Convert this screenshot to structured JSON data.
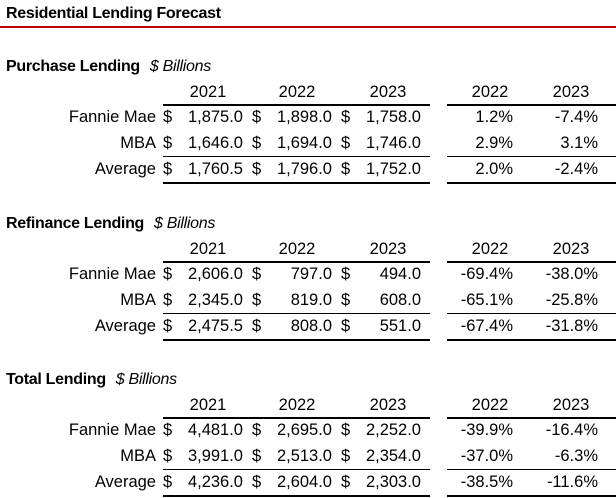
{
  "title": "Residential Lending Forecast",
  "accent_color": "#c00000",
  "sections": [
    {
      "title": "Purchase Lending",
      "unit": "$ Billions",
      "value_headers": [
        "2021",
        "2022",
        "2023"
      ],
      "pct_headers": [
        "2022",
        "2023"
      ],
      "rows": [
        {
          "label": "Fannie Mae",
          "values": [
            [
              "$",
              "1,875.0"
            ],
            [
              "$",
              "1,898.0"
            ],
            [
              "$",
              "1,758.0"
            ]
          ],
          "pct": [
            "1.2%",
            "-7.4%"
          ]
        },
        {
          "label": "MBA",
          "values": [
            [
              "$",
              "1,646.0"
            ],
            [
              "$",
              "1,694.0"
            ],
            [
              "$",
              "1,746.0"
            ]
          ],
          "pct": [
            "2.9%",
            "3.1%"
          ]
        },
        {
          "label": "Average",
          "values": [
            [
              "$",
              "1,760.5"
            ],
            [
              "$",
              "1,796.0"
            ],
            [
              "$",
              "1,752.0"
            ]
          ],
          "pct": [
            "2.0%",
            "-2.4%"
          ]
        }
      ]
    },
    {
      "title": "Refinance Lending",
      "unit": "$ Billions",
      "value_headers": [
        "2021",
        "2022",
        "2023"
      ],
      "pct_headers": [
        "2022",
        "2023"
      ],
      "rows": [
        {
          "label": "Fannie Mae",
          "values": [
            [
              "$",
              "2,606.0"
            ],
            [
              "$",
              "797.0"
            ],
            [
              "$",
              "494.0"
            ]
          ],
          "pct": [
            "-69.4%",
            "-38.0%"
          ]
        },
        {
          "label": "MBA",
          "values": [
            [
              "$",
              "2,345.0"
            ],
            [
              "$",
              "819.0"
            ],
            [
              "$",
              "608.0"
            ]
          ],
          "pct": [
            "-65.1%",
            "-25.8%"
          ]
        },
        {
          "label": "Average",
          "values": [
            [
              "$",
              "2,475.5"
            ],
            [
              "$",
              "808.0"
            ],
            [
              "$",
              "551.0"
            ]
          ],
          "pct": [
            "-67.4%",
            "-31.8%"
          ]
        }
      ]
    },
    {
      "title": "Total Lending",
      "unit": "$ Billions",
      "value_headers": [
        "2021",
        "2022",
        "2023"
      ],
      "pct_headers": [
        "2022",
        "2023"
      ],
      "rows": [
        {
          "label": "Fannie Mae",
          "values": [
            [
              "$",
              "4,481.0"
            ],
            [
              "$",
              "2,695.0"
            ],
            [
              "$",
              "2,252.0"
            ]
          ],
          "pct": [
            "-39.9%",
            "-16.4%"
          ]
        },
        {
          "label": "MBA",
          "values": [
            [
              "$",
              "3,991.0"
            ],
            [
              "$",
              "2,513.0"
            ],
            [
              "$",
              "2,354.0"
            ]
          ],
          "pct": [
            "-37.0%",
            "-6.3%"
          ]
        },
        {
          "label": "Average",
          "values": [
            [
              "$",
              "4,236.0"
            ],
            [
              "$",
              "2,604.0"
            ],
            [
              "$",
              "2,303.0"
            ]
          ],
          "pct": [
            "-38.5%",
            "-11.6%"
          ]
        }
      ]
    }
  ]
}
